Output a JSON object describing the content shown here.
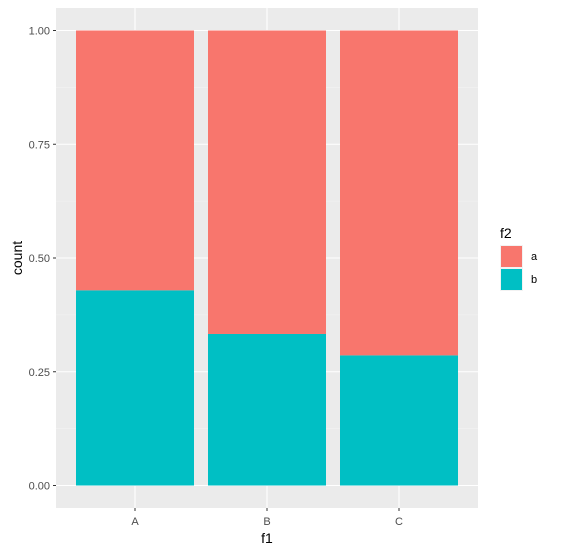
{
  "chart_data": {
    "type": "bar",
    "stacked": true,
    "position": "fill",
    "categories": [
      "A",
      "B",
      "C"
    ],
    "series": [
      {
        "name": "a",
        "values": [
          0.571,
          0.667,
          0.714
        ],
        "color": "#F8766D"
      },
      {
        "name": "b",
        "values": [
          0.429,
          0.333,
          0.286
        ],
        "color": "#00BFC4"
      }
    ],
    "xlabel": "f1",
    "ylabel": "count",
    "ylim": [
      0,
      1
    ],
    "yticks": [
      0.0,
      0.25,
      0.5,
      0.75,
      1.0
    ],
    "ytick_labels": [
      "0.00",
      "0.25",
      "0.50",
      "0.75",
      "1.00"
    ],
    "grid": true,
    "panel_background": "#EBEBEB",
    "legend": {
      "title": "f2",
      "position": "right",
      "entries": [
        "a",
        "b"
      ]
    }
  }
}
